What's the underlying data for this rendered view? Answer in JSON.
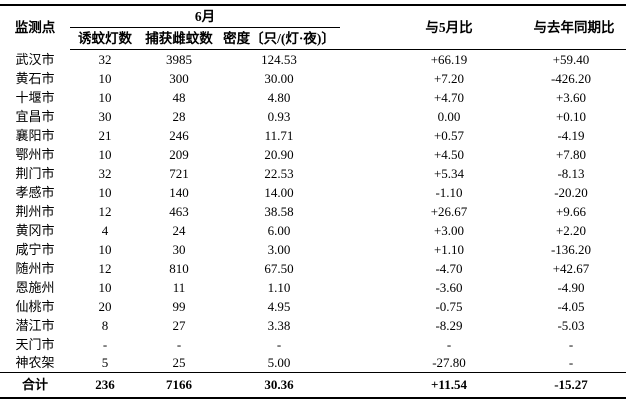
{
  "table": {
    "header": {
      "site": "监测点",
      "june_group": "6月",
      "lamps": "诱蚊灯数",
      "females": "捕获雌蚊数",
      "density": "密度〔只/(灯·夜)〕",
      "vs_may": "与5月比",
      "vs_last_year": "与去年同期比"
    },
    "rows": [
      {
        "site": "武汉市",
        "lamps": "32",
        "females": "3985",
        "density": "124.53",
        "vs_may": "+66.19",
        "vs_last_year": "+59.40"
      },
      {
        "site": "黄石市",
        "lamps": "10",
        "females": "300",
        "density": "30.00",
        "vs_may": "+7.20",
        "vs_last_year": "-426.20"
      },
      {
        "site": "十堰市",
        "lamps": "10",
        "females": "48",
        "density": "4.80",
        "vs_may": "+4.70",
        "vs_last_year": "+3.60"
      },
      {
        "site": "宜昌市",
        "lamps": "30",
        "females": "28",
        "density": "0.93",
        "vs_may": "0.00",
        "vs_last_year": "+0.10"
      },
      {
        "site": "襄阳市",
        "lamps": "21",
        "females": "246",
        "density": "11.71",
        "vs_may": "+0.57",
        "vs_last_year": "-4.19"
      },
      {
        "site": "鄂州市",
        "lamps": "10",
        "females": "209",
        "density": "20.90",
        "vs_may": "+4.50",
        "vs_last_year": "+7.80"
      },
      {
        "site": "荆门市",
        "lamps": "32",
        "females": "721",
        "density": "22.53",
        "vs_may": "+5.34",
        "vs_last_year": "-8.13"
      },
      {
        "site": "孝感市",
        "lamps": "10",
        "females": "140",
        "density": "14.00",
        "vs_may": "-1.10",
        "vs_last_year": "-20.20"
      },
      {
        "site": "荆州市",
        "lamps": "12",
        "females": "463",
        "density": "38.58",
        "vs_may": "+26.67",
        "vs_last_year": "+9.66"
      },
      {
        "site": "黄冈市",
        "lamps": "4",
        "females": "24",
        "density": "6.00",
        "vs_may": "+3.00",
        "vs_last_year": "+2.20"
      },
      {
        "site": "咸宁市",
        "lamps": "10",
        "females": "30",
        "density": "3.00",
        "vs_may": "+1.10",
        "vs_last_year": "-136.20"
      },
      {
        "site": "随州市",
        "lamps": "12",
        "females": "810",
        "density": "67.50",
        "vs_may": "-4.70",
        "vs_last_year": "+42.67"
      },
      {
        "site": "恩施州",
        "lamps": "10",
        "females": "11",
        "density": "1.10",
        "vs_may": "-3.60",
        "vs_last_year": "-4.90"
      },
      {
        "site": "仙桃市",
        "lamps": "20",
        "females": "99",
        "density": "4.95",
        "vs_may": "-0.75",
        "vs_last_year": "-4.05"
      },
      {
        "site": "潜江市",
        "lamps": "8",
        "females": "27",
        "density": "3.38",
        "vs_may": "-8.29",
        "vs_last_year": "-5.03"
      },
      {
        "site": "天门市",
        "lamps": "-",
        "females": "-",
        "density": "-",
        "vs_may": "-",
        "vs_last_year": "-"
      },
      {
        "site": "神农架",
        "lamps": "5",
        "females": "25",
        "density": "5.00",
        "vs_may": "-27.80",
        "vs_last_year": "-"
      }
    ],
    "total": {
      "site": "合计",
      "lamps": "236",
      "females": "7166",
      "density": "30.36",
      "vs_may": "+11.54",
      "vs_last_year": "-15.27"
    }
  }
}
